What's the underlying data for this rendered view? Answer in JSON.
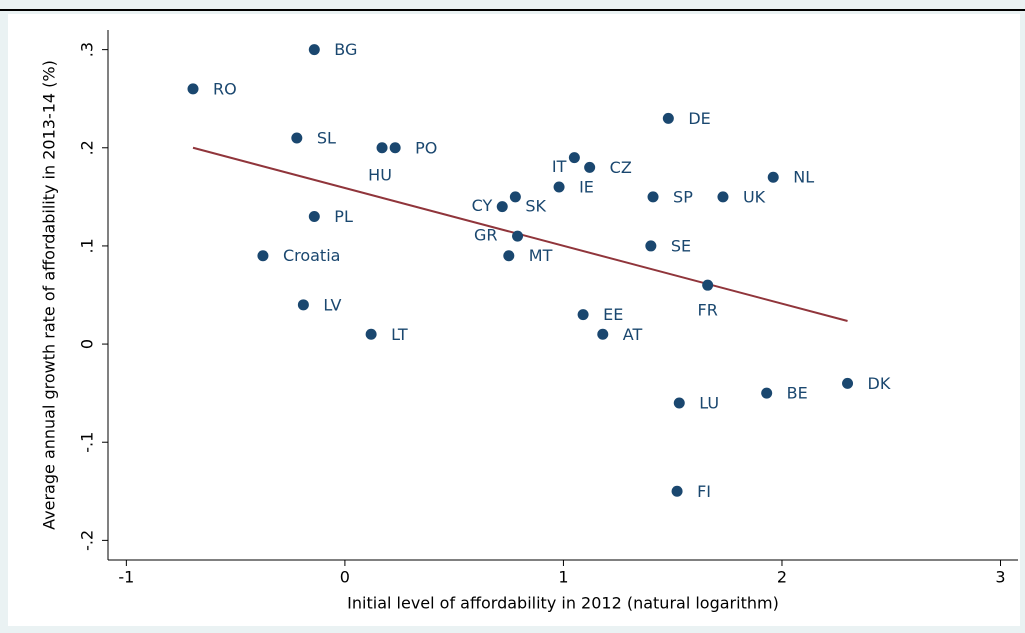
{
  "chart_data": {
    "type": "scatter",
    "xlabel": "Initial level of affordability in 2012 (natural logarithm)",
    "ylabel": "Average annual growth rate of affordability in 2013-14 (%)",
    "xlim": [
      -1.084,
      3.08
    ],
    "ylim": [
      -0.22,
      0.32
    ],
    "xticks": [
      -1,
      0,
      1,
      2,
      3
    ],
    "yticks": [
      {
        "value": -0.2,
        "label": "-.2"
      },
      {
        "value": -0.1,
        "label": "-.1"
      },
      0,
      {
        "value": 0.1,
        "label": ".1"
      },
      {
        "value": 0.2,
        "label": ".2"
      },
      {
        "value": 0.3,
        "label": ".3"
      }
    ],
    "color": "#1a476f",
    "labels": [
      "BG",
      "RO",
      "SL",
      "HU",
      "PO",
      "PL",
      "Croatia",
      "LV",
      "LT",
      "CY",
      "SK",
      "GR",
      "MT",
      "IT",
      "CZ",
      "IE",
      "EE",
      "AT",
      "DE",
      "SP",
      "SE",
      "FR",
      "UK",
      "NL",
      "LU",
      "FI",
      "BE",
      "DK"
    ],
    "x": [
      -0.14,
      -0.695,
      -0.22,
      0.17,
      0.23,
      -0.14,
      -0.375,
      -0.19,
      0.12,
      0.72,
      0.78,
      0.79,
      0.75,
      1.05,
      1.12,
      0.98,
      1.09,
      1.18,
      1.48,
      1.41,
      1.4,
      1.66,
      1.73,
      1.96,
      1.53,
      1.52,
      1.93,
      2.3
    ],
    "values": [
      0.3,
      0.26,
      0.21,
      0.2,
      0.2,
      0.13,
      0.09,
      0.04,
      0.01,
      0.14,
      0.15,
      0.11,
      0.09,
      0.19,
      0.18,
      0.16,
      0.03,
      0.01,
      0.23,
      0.15,
      0.1,
      0.06,
      0.15,
      0.17,
      -0.06,
      -0.15,
      -0.05,
      -0.04
    ],
    "fit": {
      "color": "#90353b",
      "x": [
        -0.695,
        2.3
      ],
      "values": [
        0.2,
        0.0235
      ]
    }
  }
}
